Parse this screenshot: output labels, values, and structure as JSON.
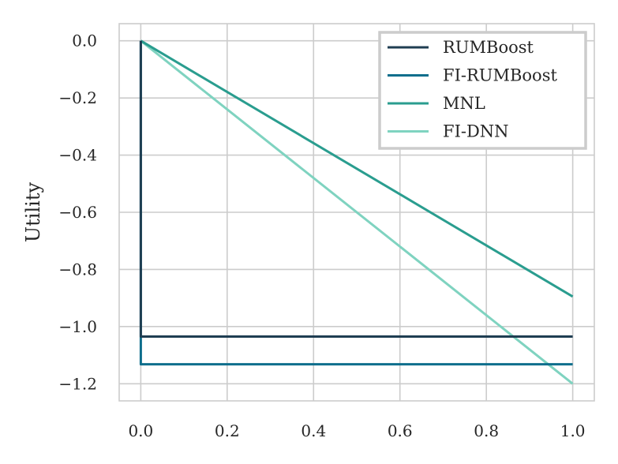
{
  "chart_data": {
    "type": "line",
    "title": "",
    "xlabel": "",
    "ylabel": "Utility",
    "xlim": [
      -0.05,
      1.05
    ],
    "ylim": [
      -1.26,
      0.06
    ],
    "xticks": [
      0.0,
      0.2,
      0.4,
      0.6,
      0.8,
      1.0
    ],
    "xtick_labels": [
      "0.0",
      "0.2",
      "0.4",
      "0.6",
      "0.8",
      "1.0"
    ],
    "yticks": [
      0.0,
      -0.2,
      -0.4,
      -0.6,
      -0.8,
      -1.0,
      -1.2
    ],
    "ytick_labels": [
      "0.0",
      "−0.2",
      "−0.4",
      "−0.6",
      "−0.8",
      "−1.0",
      "−1.2"
    ],
    "grid": true,
    "legend_position": "top-right",
    "series": [
      {
        "name": "RUMBoost",
        "color": "#1f3e52",
        "x": [
          0.0,
          0.0,
          1.0
        ],
        "y": [
          0.0,
          -1.035,
          -1.035
        ]
      },
      {
        "name": "FI-RUMBoost",
        "color": "#0e6e8c",
        "x": [
          0.0,
          0.0,
          1.0
        ],
        "y": [
          0.0,
          -1.132,
          -1.132
        ]
      },
      {
        "name": "MNL",
        "color": "#2a9d8f",
        "x": [
          0.0,
          1.0
        ],
        "y": [
          0.0,
          -0.895
        ]
      },
      {
        "name": "FI-DNN",
        "color": "#7fd3c0",
        "x": [
          0.0,
          1.0
        ],
        "y": [
          0.0,
          -1.2
        ]
      }
    ]
  }
}
